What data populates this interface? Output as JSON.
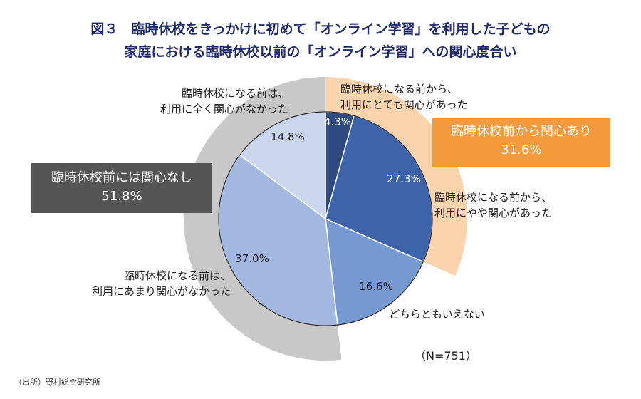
{
  "title_line1": "図３　臨時休校をきっかけに初めて「オンライン学習」を利用した子どもの",
  "title_line2": "家庭における臨時休校以前の「オンライン学習」への関心度合い",
  "sample": "（N=751）",
  "source": "（出所）野村総合研究所",
  "chart_data": {
    "type": "pie",
    "title": "臨時休校をきっかけに初めて「オンライン学習」を利用した子どもの家庭における臨時休校以前の「オンライン学習」への関心度合い",
    "start": "12 o'clock, clockwise",
    "slices": [
      {
        "label_line1": "臨時休校になる前から、",
        "label_line2": "利用にとても関心があった",
        "value": 4.3,
        "value_label": "4.3%",
        "color": "#2e4a80"
      },
      {
        "label_line1": "臨時休校になる前から、",
        "label_line2": "利用にやや関心があった",
        "value": 27.3,
        "value_label": "27.3%",
        "color": "#3d63aa"
      },
      {
        "label_line1": "どちらともいえない",
        "label_line2": "",
        "value": 16.6,
        "value_label": "16.6%",
        "color": "#7799d2"
      },
      {
        "label_line1": "臨時休校になる前は、",
        "label_line2": "利用にあまり関心がなかった",
        "value": 37.0,
        "value_label": "37.0%",
        "color": "#a3b8e0"
      },
      {
        "label_line1": "臨時休校になる前は、",
        "label_line2": "利用に全く関心がなかった",
        "value": 14.8,
        "value_label": "14.8%",
        "color": "#c9d6ee"
      }
    ],
    "groups": [
      {
        "label": "臨時休校前から関心あり",
        "value": 31.6,
        "value_label": "31.6%",
        "ring_color": "#fbd3ac",
        "box_color": "#f29a3c",
        "from": 0,
        "to": 31.6
      },
      {
        "label": "臨時休校前には関心なし",
        "value": 51.8,
        "value_label": "51.8%",
        "ring_color": "#c8c8c8",
        "box_color": "#555555",
        "from": 48.2,
        "to": 100
      }
    ]
  }
}
